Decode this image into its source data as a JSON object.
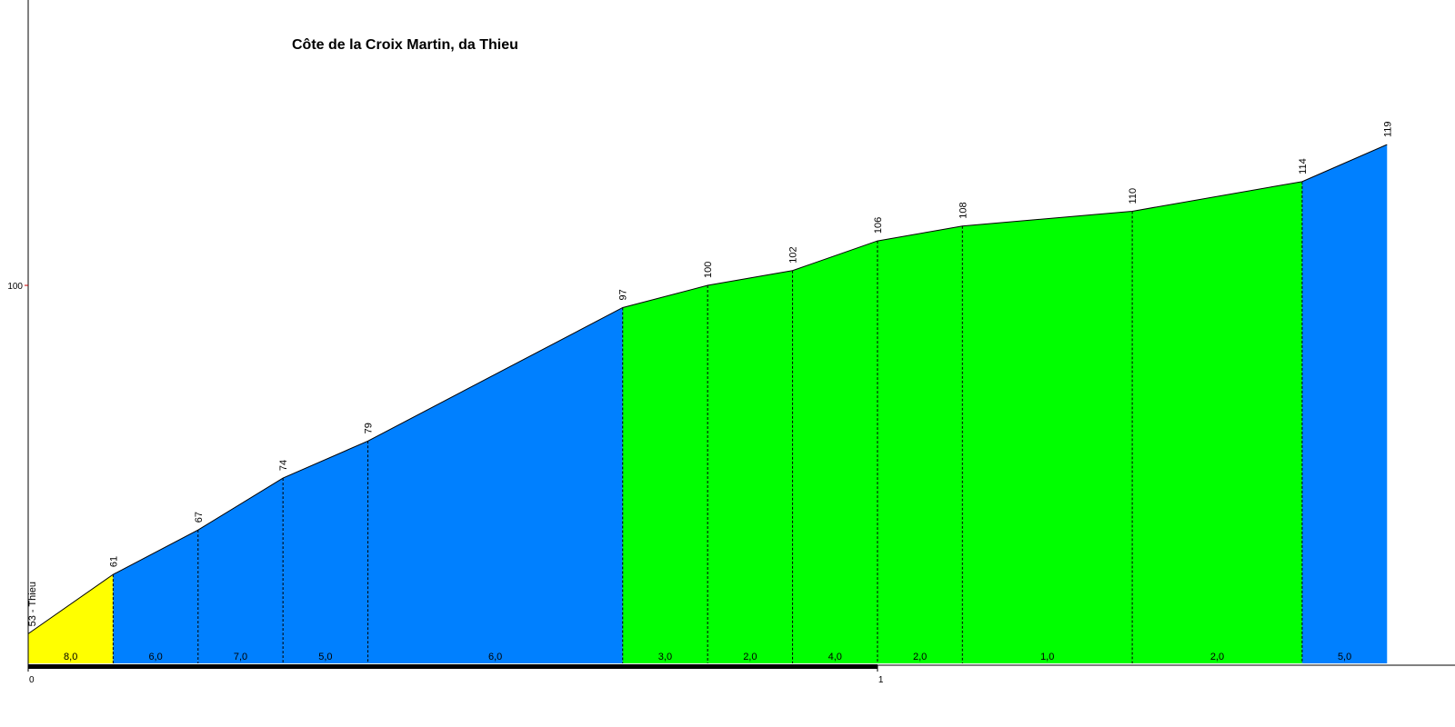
{
  "chart_data": {
    "type": "climb-profile",
    "title": "Côte de la Croix Martin, da Thieu",
    "x": [
      0,
      0.1,
      0.2,
      0.3,
      0.4,
      0.7,
      0.8,
      0.9,
      1.0,
      1.1,
      1.3,
      1.5,
      1.6
    ],
    "series": [
      {
        "values": [
          53,
          61,
          67,
          74,
          79,
          97,
          100,
          102,
          106,
          108,
          110,
          114,
          119
        ],
        "value_labels": [
          "53 - Thieu",
          "61",
          "67",
          "74",
          "79",
          "97",
          "100",
          "102",
          "106",
          "108",
          "110",
          "114",
          "119"
        ]
      }
    ],
    "gradients": [
      8.0,
      6.0,
      7.0,
      5.0,
      6.0,
      3.0,
      2.0,
      4.0,
      2.0,
      1.0,
      2.0,
      5.0
    ],
    "gradient_labels": [
      "8,0",
      "6,0",
      "7,0",
      "5,0",
      "6,0",
      "3,0",
      "2,0",
      "4,0",
      "2,0",
      "1,0",
      "2,0",
      "5,0"
    ],
    "segment_colors": [
      "#ffff00",
      "#0080ff",
      "#0080ff",
      "#0080ff",
      "#0080ff",
      "#00ff00",
      "#00ff00",
      "#00ff00",
      "#00ff00",
      "#00ff00",
      "#00ff00",
      "#0080ff"
    ],
    "xlim": [
      0,
      1.68
    ],
    "xticks": [
      0,
      1
    ],
    "ylim": [
      49,
      138.5
    ],
    "yticks": [
      100
    ]
  }
}
